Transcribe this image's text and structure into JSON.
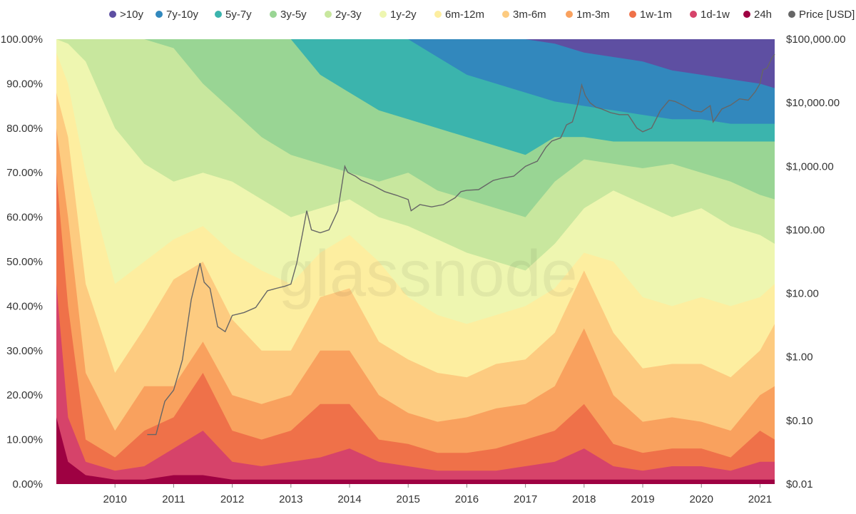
{
  "colors": {
    "bands": [
      "#5e4fa2",
      "#3288bd",
      "#3bb4ad",
      "#99d594",
      "#c8e79e",
      "#eef6b0",
      "#fdeea0",
      "#fdcb80",
      "#f9a15e",
      "#ef7149",
      "#d6436a",
      "#9e0142"
    ],
    "price": "#666666",
    "text": "#333333"
  },
  "chart_data": {
    "type": "area",
    "stacked": true,
    "normalized": true,
    "watermark": "glassnode",
    "legend": [
      ">10y",
      "7y-10y",
      "5y-7y",
      "3y-5y",
      "2y-3y",
      "1y-2y",
      "6m-12m",
      "3m-6m",
      "1m-3m",
      "1w-1m",
      "1d-1w",
      "24h",
      "Price [USD]"
    ],
    "legend_position": "top-center",
    "xlim": [
      2009.0,
      2021.25
    ],
    "x_ticks": [
      "2010",
      "2011",
      "2012",
      "2013",
      "2014",
      "2015",
      "2016",
      "2017",
      "2018",
      "2019",
      "2020",
      "2021"
    ],
    "y_left": {
      "min": 0,
      "max": 100,
      "ticks": [
        "0.00%",
        "10.00%",
        "20.00%",
        "30.00%",
        "40.00%",
        "50.00%",
        "60.00%",
        "70.00%",
        "80.00%",
        "90.00%",
        "100.00%"
      ]
    },
    "y_right": {
      "scale": "log",
      "min": 0.01,
      "max": 100000,
      "ticks": [
        "$0.01",
        "$0.10",
        "$1.00",
        "$10.00",
        "$100.00",
        "$1,000.00",
        "$10,000.00",
        "$100,000.00"
      ]
    },
    "band_boundaries_x": [
      2009.0,
      2009.2,
      2009.5,
      2010.0,
      2010.5,
      2011.0,
      2011.5,
      2012.0,
      2012.5,
      2013.0,
      2013.5,
      2014.0,
      2014.5,
      2015.0,
      2015.5,
      2016.0,
      2016.5,
      2017.0,
      2017.5,
      2018.0,
      2018.5,
      2019.0,
      2019.5,
      2020.0,
      2020.5,
      2021.0,
      2021.25
    ],
    "band_boundaries_cumulative_pct": [
      {
        "name": "24h",
        "values": [
          15,
          5,
          2,
          1,
          1,
          2,
          2,
          1,
          1,
          1,
          1,
          1,
          1,
          1,
          1,
          1,
          1,
          1,
          1,
          1,
          1,
          1,
          1,
          1,
          1,
          1,
          1
        ]
      },
      {
        "name": "1d-1w",
        "values": [
          45,
          15,
          5,
          3,
          4,
          8,
          12,
          5,
          4,
          5,
          6,
          8,
          5,
          4,
          3,
          3,
          3,
          4,
          5,
          8,
          4,
          3,
          4,
          4,
          3,
          5,
          5
        ]
      },
      {
        "name": "1w-1m",
        "values": [
          70,
          40,
          10,
          6,
          12,
          15,
          25,
          12,
          10,
          12,
          18,
          18,
          10,
          9,
          7,
          7,
          8,
          10,
          12,
          18,
          9,
          7,
          8,
          8,
          6,
          12,
          10
        ]
      },
      {
        "name": "1m-3m",
        "values": [
          80,
          60,
          25,
          12,
          22,
          22,
          32,
          20,
          18,
          20,
          30,
          30,
          20,
          16,
          14,
          15,
          17,
          18,
          22,
          35,
          20,
          14,
          15,
          14,
          12,
          20,
          22
        ]
      },
      {
        "name": "3m-6m",
        "values": [
          88,
          78,
          45,
          25,
          35,
          46,
          50,
          37,
          30,
          30,
          42,
          44,
          32,
          28,
          25,
          24,
          27,
          28,
          34,
          48,
          34,
          26,
          27,
          27,
          24,
          30,
          36
        ]
      },
      {
        "name": "6m-12m",
        "values": [
          97,
          90,
          70,
          45,
          50,
          55,
          58,
          52,
          48,
          45,
          52,
          56,
          50,
          42,
          38,
          36,
          38,
          40,
          44,
          52,
          50,
          42,
          40,
          42,
          40,
          42,
          45
        ]
      },
      {
        "name": "1y-2y",
        "values": [
          100,
          99,
          95,
          80,
          72,
          68,
          70,
          68,
          64,
          60,
          62,
          64,
          60,
          58,
          55,
          52,
          50,
          48,
          54,
          62,
          66,
          63,
          60,
          62,
          58,
          56,
          54
        ]
      },
      {
        "name": "2y-3y",
        "values": [
          100,
          100,
          100,
          100,
          100,
          98,
          90,
          84,
          78,
          74,
          72,
          70,
          68,
          70,
          66,
          64,
          62,
          60,
          68,
          73,
          72,
          71,
          72,
          70,
          68,
          65,
          64
        ]
      },
      {
        "name": "3y-5y",
        "values": [
          100,
          100,
          100,
          100,
          100,
          100,
          100,
          100,
          100,
          100,
          92,
          88,
          84,
          82,
          80,
          78,
          76,
          74,
          78,
          78,
          77,
          77,
          77,
          77,
          77,
          77,
          77
        ]
      },
      {
        "name": "5y-7y",
        "values": [
          100,
          100,
          100,
          100,
          100,
          100,
          100,
          100,
          100,
          100,
          100,
          100,
          100,
          100,
          96,
          92,
          90,
          88,
          86,
          85,
          84,
          83,
          82,
          82,
          81,
          81,
          81
        ]
      },
      {
        "name": "7y-10y",
        "values": [
          100,
          100,
          100,
          100,
          100,
          100,
          100,
          100,
          100,
          100,
          100,
          100,
          100,
          100,
          100,
          100,
          100,
          100,
          99,
          97,
          96,
          95,
          93,
          92,
          91,
          90,
          89
        ]
      },
      {
        "name": ">10y",
        "values": [
          100,
          100,
          100,
          100,
          100,
          100,
          100,
          100,
          100,
          100,
          100,
          100,
          100,
          100,
          100,
          100,
          100,
          100,
          100,
          100,
          100,
          100,
          100,
          100,
          100,
          100,
          100
        ]
      }
    ],
    "price_usd": {
      "x": [
        2010.55,
        2010.7,
        2010.85,
        2011.0,
        2011.15,
        2011.3,
        2011.45,
        2011.52,
        2011.62,
        2011.75,
        2011.88,
        2012.0,
        2012.2,
        2012.4,
        2012.6,
        2012.75,
        2012.9,
        2013.0,
        2013.1,
        2013.2,
        2013.27,
        2013.35,
        2013.5,
        2013.65,
        2013.8,
        2013.92,
        2013.97,
        2014.1,
        2014.2,
        2014.4,
        2014.6,
        2014.8,
        2015.0,
        2015.05,
        2015.2,
        2015.4,
        2015.6,
        2015.8,
        2015.9,
        2016.0,
        2016.2,
        2016.45,
        2016.6,
        2016.8,
        2017.0,
        2017.1,
        2017.2,
        2017.35,
        2017.45,
        2017.6,
        2017.7,
        2017.8,
        2017.9,
        2017.96,
        2018.02,
        2018.1,
        2018.2,
        2018.3,
        2018.45,
        2018.6,
        2018.75,
        2018.9,
        2019.0,
        2019.15,
        2019.3,
        2019.45,
        2019.55,
        2019.7,
        2019.85,
        2020.0,
        2020.15,
        2020.2,
        2020.35,
        2020.5,
        2020.65,
        2020.8,
        2020.92,
        2021.0,
        2021.05,
        2021.12,
        2021.2,
        2021.25
      ],
      "y": [
        0.06,
        0.06,
        0.2,
        0.3,
        0.9,
        8,
        30,
        15,
        12,
        3,
        2.5,
        4.5,
        5,
        6,
        11,
        12,
        13,
        14,
        30,
        90,
        200,
        100,
        90,
        100,
        200,
        1000,
        800,
        700,
        600,
        500,
        400,
        350,
        300,
        200,
        250,
        230,
        250,
        320,
        400,
        420,
        430,
        600,
        650,
        700,
        1000,
        1100,
        1200,
        2000,
        2500,
        2800,
        4500,
        5000,
        10000,
        19000,
        13000,
        10000,
        8500,
        8000,
        7000,
        6500,
        6500,
        4000,
        3500,
        4000,
        7500,
        11000,
        10500,
        9000,
        7500,
        7200,
        9000,
        5000,
        8000,
        9200,
        11500,
        11000,
        15000,
        20000,
        33000,
        35000,
        50000,
        58000
      ]
    }
  }
}
